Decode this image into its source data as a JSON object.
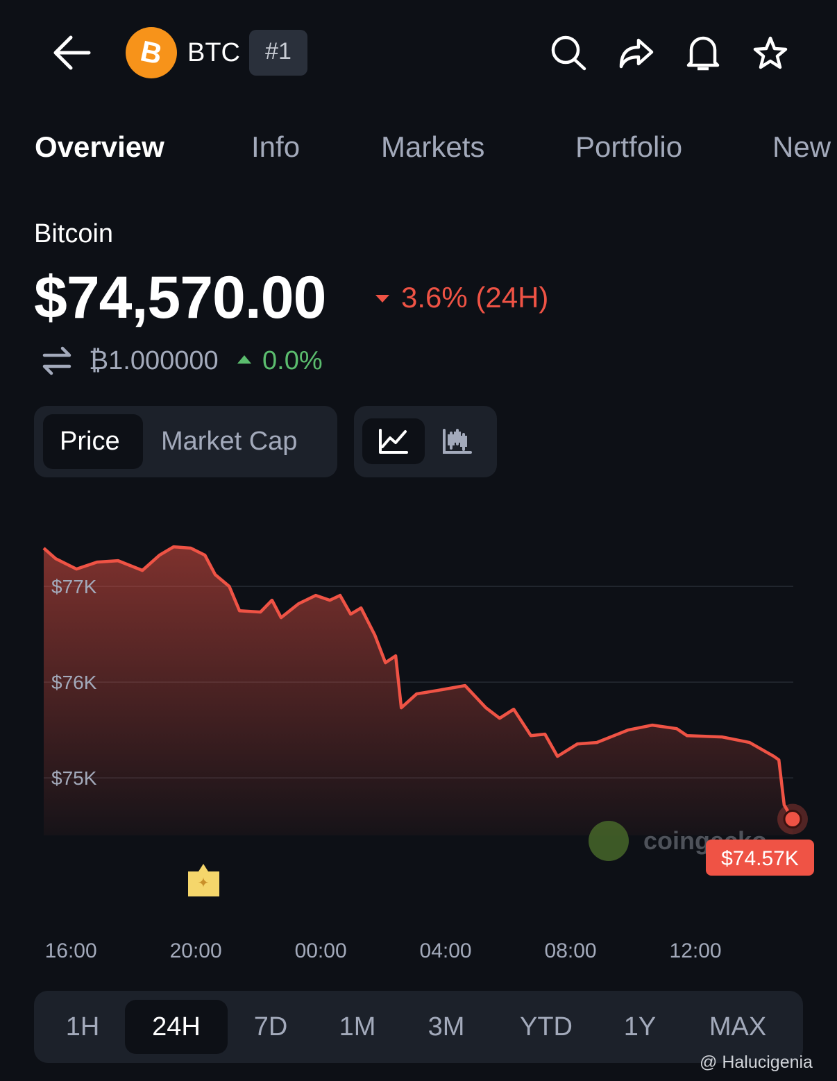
{
  "header": {
    "symbol": "BTC",
    "rank": "#1"
  },
  "tabs": [
    "Overview",
    "Info",
    "Markets",
    "Portfolio",
    "New"
  ],
  "coin": {
    "name": "Bitcoin",
    "price": "$74,570.00",
    "change_24h": "3.6% (24H)",
    "btc_price": "₿1.000000",
    "btc_change": "0.0%"
  },
  "chart_toggle": [
    "Price",
    "Market Cap"
  ],
  "ranges": [
    "1H",
    "24H",
    "7D",
    "1M",
    "3M",
    "YTD",
    "1Y",
    "MAX"
  ],
  "watermark": "@ Halucigenia",
  "chart_data": {
    "type": "line",
    "color": "#ef5345",
    "grid": true,
    "x": [
      15.13,
      15.51,
      16.18,
      16.84,
      17.51,
      18.29,
      18.84,
      19.29,
      19.84,
      20.29,
      20.62,
      21.07,
      21.4,
      22.07,
      22.44,
      22.73,
      23.29,
      23.84,
      24.29,
      24.62,
      24.96,
      25.29,
      25.73,
      26.07,
      26.4,
      26.58,
      27.07,
      27.73,
      28.62,
      29.29,
      29.73,
      30.18,
      30.73,
      31.18,
      31.58,
      32.22,
      32.84,
      33.84,
      34.62,
      35.4,
      35.73,
      36.84,
      37.73,
      38.51,
      38.67,
      38.84,
      39.11
    ],
    "values": [
      77399,
      77290,
      77181,
      77254,
      77268,
      77167,
      77326,
      77413,
      77399,
      77326,
      77123,
      77000,
      76746,
      76732,
      76855,
      76674,
      76819,
      76906,
      76855,
      76906,
      76710,
      76775,
      76493,
      76203,
      76275,
      75732,
      75877,
      75913,
      75964,
      75732,
      75623,
      75717,
      75442,
      75457,
      75225,
      75355,
      75370,
      75500,
      75551,
      75514,
      75442,
      75428,
      75370,
      75225,
      75188,
      74717,
      74570
    ],
    "xlim": [
      15.13,
      39.11
    ],
    "xticks": [
      {
        "value": 16,
        "label": "16:00"
      },
      {
        "value": 20,
        "label": "20:00"
      },
      {
        "value": 24,
        "label": "00:00"
      },
      {
        "value": 28,
        "label": "04:00"
      },
      {
        "value": 32,
        "label": "08:00"
      },
      {
        "value": 36,
        "label": "12:00"
      }
    ],
    "ylim": [
      74400,
      77450
    ],
    "yticks": [
      {
        "value": 75000,
        "label": "$75K"
      },
      {
        "value": 76000,
        "label": "$76K"
      },
      {
        "value": 77000,
        "label": "$77K"
      }
    ],
    "annotation": {
      "x": 39.11,
      "y": 74570,
      "text": "$74.57K"
    },
    "logo": "coingecko"
  }
}
